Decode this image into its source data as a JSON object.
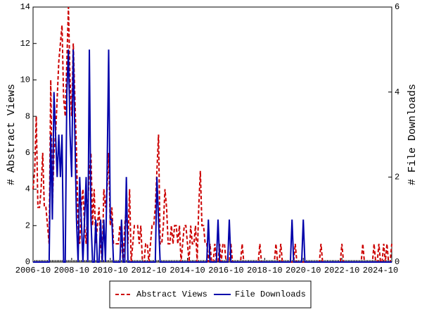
{
  "chart_data": {
    "type": "line",
    "y_label": "# Abstract Views",
    "y2_label": "# File Downloads",
    "categories": [
      "2006-10",
      null,
      null,
      null,
      null,
      null,
      null,
      null,
      null,
      null,
      null,
      null,
      null,
      null,
      null,
      null,
      null,
      null,
      null,
      null,
      null,
      null,
      null,
      null,
      "2008-10",
      null,
      null,
      null,
      null,
      null,
      null,
      null,
      null,
      null,
      null,
      null,
      null,
      null,
      null,
      null,
      null,
      null,
      null,
      null,
      null,
      null,
      null,
      null,
      "2010-10",
      null,
      null,
      null,
      null,
      null,
      null,
      null,
      null,
      null,
      null,
      null,
      null,
      null,
      null,
      null,
      null,
      null,
      null,
      null,
      null,
      null,
      null,
      null,
      "2012-10",
      null,
      null,
      null,
      null,
      null,
      null,
      null,
      null,
      null,
      null,
      null,
      null,
      null,
      null,
      null,
      null,
      null,
      null,
      null,
      null,
      null,
      null,
      null,
      "2014-10",
      null,
      null,
      null,
      null,
      null,
      null,
      null,
      null,
      null,
      null,
      null,
      null,
      null,
      null,
      null,
      null,
      null,
      null,
      null,
      null,
      null,
      null,
      null,
      "2016-10",
      null,
      null,
      null,
      null,
      null,
      null,
      null,
      null,
      null,
      null,
      null,
      null,
      null,
      null,
      null,
      null,
      null,
      null,
      null,
      null,
      null,
      null,
      null,
      "2018-10",
      null,
      null,
      null,
      null,
      null,
      null,
      null,
      null,
      null,
      null,
      null,
      null,
      null,
      null,
      null,
      null,
      null,
      null,
      null,
      null,
      null,
      null,
      null,
      "2020-10",
      null,
      null,
      null,
      null,
      null,
      null,
      null,
      null,
      null,
      null,
      null,
      null,
      null,
      null,
      null,
      null,
      null,
      null,
      null,
      null,
      null,
      null,
      null,
      "2022-10",
      null,
      null,
      null,
      null,
      null,
      null,
      null,
      null,
      null,
      null,
      null,
      null,
      null,
      null,
      null,
      null,
      null,
      null,
      null,
      null,
      null,
      null,
      null,
      "2024-10",
      null,
      null,
      null,
      null,
      null,
      null,
      null
    ],
    "series": [
      {
        "name": "Abstract Views",
        "color": "#cc0000",
        "dash": true,
        "values": [
          4,
          5,
          8,
          3,
          3,
          4,
          6,
          3,
          3,
          2,
          1,
          10,
          3,
          6,
          7,
          9,
          11,
          12,
          13,
          9,
          8,
          11,
          14,
          10,
          8,
          12,
          9,
          6,
          2,
          1,
          3,
          4,
          2,
          1,
          3,
          5,
          6,
          2,
          4,
          1,
          2,
          3,
          1,
          0,
          4,
          3,
          4,
          6,
          2,
          3,
          1,
          1,
          1,
          1,
          2,
          1,
          0,
          2,
          3,
          1,
          4,
          0,
          1,
          2,
          2,
          2,
          1,
          2,
          0,
          0,
          1,
          1,
          0,
          1,
          2,
          2,
          3,
          5,
          7,
          1,
          1,
          2,
          4,
          3,
          1,
          1,
          2,
          1,
          2,
          2,
          1,
          2,
          0,
          1,
          2,
          2,
          1,
          0,
          2,
          1,
          1,
          2,
          0,
          3,
          5,
          2,
          2,
          1,
          1,
          0,
          1,
          0,
          0,
          1,
          0,
          0,
          1,
          0,
          1,
          1,
          0,
          0,
          0,
          1,
          0,
          0,
          0,
          0,
          0,
          0,
          1,
          0,
          0,
          0,
          0,
          0,
          0,
          0,
          0,
          0,
          0,
          1,
          0,
          0,
          0,
          0,
          0,
          0,
          0,
          0,
          0,
          1,
          0,
          0,
          1,
          0,
          0,
          0,
          0,
          0,
          0,
          0,
          0,
          1,
          0,
          0,
          0,
          0,
          0,
          0,
          0,
          0,
          0,
          0,
          0,
          0,
          0,
          0,
          0,
          1,
          0,
          0,
          0,
          0,
          0,
          0,
          0,
          0,
          0,
          0,
          0,
          0,
          1,
          0,
          0,
          0,
          0,
          0,
          0,
          0,
          0,
          0,
          0,
          0,
          0,
          1,
          0,
          0,
          0,
          0,
          0,
          0,
          1,
          0,
          0,
          1,
          0,
          0,
          1,
          0,
          1,
          0,
          0,
          1
        ]
      },
      {
        "name": "File Downloads",
        "color": "#0000aa",
        "axis": "y2",
        "dash": false,
        "values": [
          0,
          0,
          0,
          0,
          0,
          0,
          0,
          0,
          0,
          0,
          0,
          3,
          1,
          4,
          3,
          2,
          3,
          2,
          3,
          0,
          0,
          4,
          5,
          3,
          2,
          5,
          3,
          1,
          0,
          2,
          1,
          0,
          1,
          2,
          0,
          5,
          1,
          0,
          0,
          1,
          0,
          0,
          1,
          0,
          1,
          0,
          2,
          5,
          1,
          1,
          0,
          0,
          0,
          0,
          0,
          1,
          0,
          0,
          2,
          0,
          0,
          0,
          0,
          0,
          0,
          0,
          0,
          0,
          0,
          0,
          0,
          0,
          0,
          0,
          0,
          0,
          0,
          2,
          1,
          0,
          0,
          0,
          0,
          0,
          0,
          0,
          0,
          0,
          0,
          0,
          0,
          0,
          0,
          0,
          0,
          0,
          0,
          0,
          0,
          0,
          0,
          0,
          0,
          0,
          0,
          0,
          0,
          0,
          0,
          1,
          0,
          0,
          0,
          0,
          0,
          1,
          0,
          0,
          0,
          0,
          0,
          0,
          1,
          0,
          0,
          0,
          0,
          0,
          0,
          0,
          0,
          0,
          0,
          0,
          0,
          0,
          0,
          0,
          0,
          0,
          0,
          0,
          0,
          0,
          0,
          0,
          0,
          0,
          0,
          0,
          0,
          0,
          0,
          0,
          0,
          0,
          0,
          0,
          0,
          0,
          0,
          1,
          0,
          0,
          0,
          0,
          0,
          0,
          1,
          0,
          0,
          0,
          0,
          0,
          0,
          0,
          0,
          0,
          0,
          0,
          0,
          0,
          0,
          0,
          0,
          0,
          0,
          0,
          0,
          0,
          0,
          0,
          0,
          0,
          0,
          0,
          0,
          0,
          0,
          0,
          0,
          0,
          0,
          0,
          0,
          0,
          0,
          0,
          0,
          0,
          0,
          0,
          0,
          0,
          0,
          0,
          0,
          0,
          0,
          0,
          0,
          0,
          0,
          0
        ]
      }
    ],
    "ylim": [
      0,
      14
    ],
    "yticks": [
      0,
      2,
      4,
      6,
      8,
      10,
      12,
      14
    ],
    "y2lim": [
      0,
      6
    ],
    "y2ticks": [
      0,
      2,
      4,
      6
    ],
    "grid": false,
    "legend": "bottom"
  }
}
